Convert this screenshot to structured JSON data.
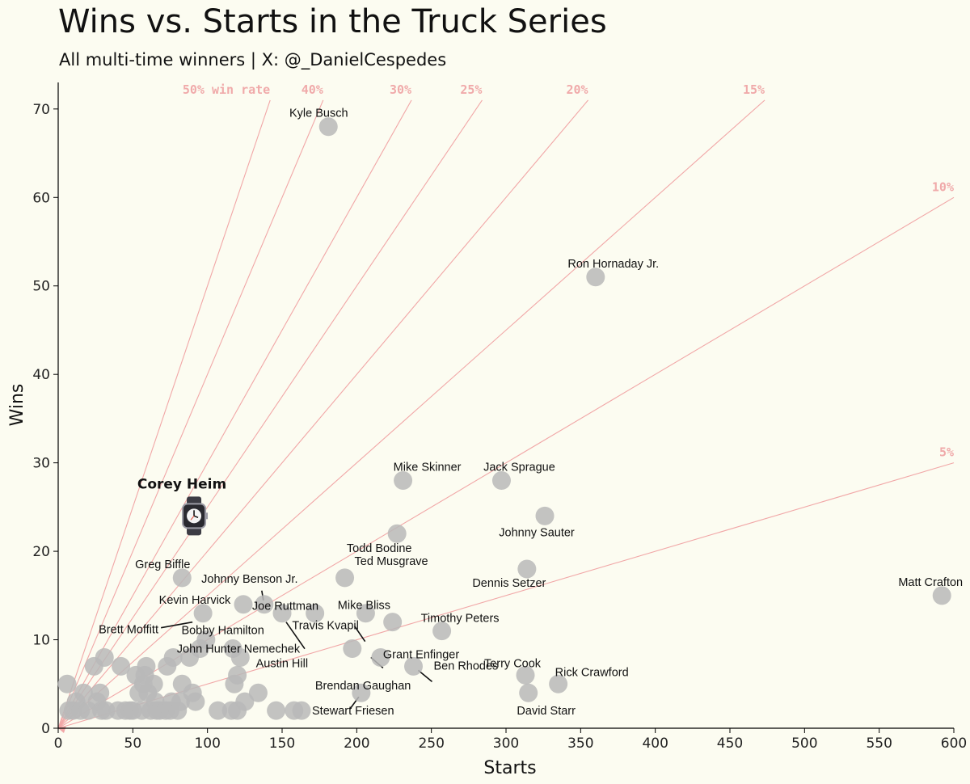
{
  "chart_data": {
    "type": "scatter",
    "title": "Wins vs. Starts in the Truck Series",
    "subtitle": "All multi-time winners | X: @_DanielCespedes",
    "xlabel": "Starts",
    "ylabel": "Wins",
    "xlim": [
      0,
      600
    ],
    "ylim": [
      0,
      73
    ],
    "xticks": [
      0,
      50,
      100,
      150,
      200,
      250,
      300,
      350,
      400,
      450,
      500,
      550,
      600
    ],
    "yticks": [
      0,
      10,
      20,
      30,
      40,
      50,
      60,
      70
    ],
    "grid": false,
    "reference_lines": [
      {
        "rate": 0.5,
        "label": "50% win rate"
      },
      {
        "rate": 0.4,
        "label": "40%"
      },
      {
        "rate": 0.3,
        "label": "30%"
      },
      {
        "rate": 0.25,
        "label": "25%"
      },
      {
        "rate": 0.2,
        "label": "20%"
      },
      {
        "rate": 0.15,
        "label": "15%"
      },
      {
        "rate": 0.1,
        "label": "10%"
      },
      {
        "rate": 0.05,
        "label": "5%"
      }
    ],
    "labeled_points": [
      {
        "name": "Kyle Busch",
        "starts": 181,
        "wins": 68
      },
      {
        "name": "Ron Hornaday Jr.",
        "starts": 360,
        "wins": 51
      },
      {
        "name": "Mike Skinner",
        "starts": 231,
        "wins": 28
      },
      {
        "name": "Jack Sprague",
        "starts": 297,
        "wins": 28
      },
      {
        "name": "Johnny Sauter",
        "starts": 326,
        "wins": 24
      },
      {
        "name": "Todd Bodine",
        "starts": 227,
        "wins": 22
      },
      {
        "name": "Dennis Setzer",
        "starts": 314,
        "wins": 18
      },
      {
        "name": "Ted Musgrave",
        "starts": 192,
        "wins": 17
      },
      {
        "name": "Greg Biffle",
        "starts": 83,
        "wins": 17
      },
      {
        "name": "Matt Crafton",
        "starts": 592,
        "wins": 15
      },
      {
        "name": "Johnny Benson Jr.",
        "starts": 138,
        "wins": 14
      },
      {
        "name": "Kevin Harvick",
        "starts": 124,
        "wins": 14
      },
      {
        "name": "Joe Ruttman",
        "starts": 150,
        "wins": 13
      },
      {
        "name": "Mike Bliss",
        "starts": 206,
        "wins": 13
      },
      {
        "name": "Brett Moffitt",
        "starts": 97,
        "wins": 13
      },
      {
        "name": "Bobby Hamilton",
        "starts": 172,
        "wins": 13
      },
      {
        "name": "Travis Kvapil",
        "starts": 224,
        "wins": 12
      },
      {
        "name": "Timothy Peters",
        "starts": 257,
        "wins": 11
      },
      {
        "name": "John Hunter Nemechek",
        "starts": 197,
        "wins": 9
      },
      {
        "name": "Grant Enfinger",
        "starts": 216,
        "wins": 8
      },
      {
        "name": "Terry Cook",
        "starts": 313,
        "wins": 6
      },
      {
        "name": "Rick Crawford",
        "starts": 335,
        "wins": 5
      },
      {
        "name": "Ben Rhodes",
        "starts": 238,
        "wins": 7
      },
      {
        "name": "Brendan Gaughan",
        "starts": 203,
        "wins": 4
      },
      {
        "name": "Austin Hill",
        "starts": 120,
        "wins": 6
      },
      {
        "name": "David Starr",
        "starts": 315,
        "wins": 4
      },
      {
        "name": "Stewart Friesen",
        "starts": 163,
        "wins": 2
      }
    ],
    "unlabeled_points": [
      [
        6,
        5
      ],
      [
        7,
        2
      ],
      [
        10,
        2
      ],
      [
        12,
        3
      ],
      [
        15,
        2
      ],
      [
        17,
        4
      ],
      [
        20,
        2
      ],
      [
        24,
        7
      ],
      [
        26,
        3
      ],
      [
        28,
        4
      ],
      [
        29,
        2
      ],
      [
        31,
        8
      ],
      [
        32,
        2
      ],
      [
        40,
        2
      ],
      [
        42,
        7
      ],
      [
        45,
        2
      ],
      [
        48,
        2
      ],
      [
        50,
        2
      ],
      [
        52,
        6
      ],
      [
        54,
        4
      ],
      [
        56,
        2
      ],
      [
        57,
        5
      ],
      [
        58,
        6
      ],
      [
        59,
        7
      ],
      [
        60,
        4
      ],
      [
        62,
        2
      ],
      [
        64,
        5
      ],
      [
        65,
        3
      ],
      [
        66,
        2
      ],
      [
        68,
        2
      ],
      [
        72,
        2
      ],
      [
        73,
        7
      ],
      [
        75,
        2
      ],
      [
        76,
        3
      ],
      [
        77,
        8
      ],
      [
        80,
        2
      ],
      [
        82,
        3
      ],
      [
        83,
        5
      ],
      [
        88,
        8
      ],
      [
        90,
        4
      ],
      [
        92,
        3
      ],
      [
        95,
        9
      ],
      [
        99,
        10
      ],
      [
        107,
        2
      ],
      [
        116,
        2
      ],
      [
        117,
        9
      ],
      [
        118,
        5
      ],
      [
        120,
        2
      ],
      [
        122,
        8
      ],
      [
        125,
        3
      ],
      [
        134,
        4
      ],
      [
        146,
        2
      ],
      [
        158,
        2
      ]
    ],
    "highlight": {
      "name": "Corey Heim",
      "starts": 91,
      "wins": 24,
      "marker": "watch-icon"
    }
  }
}
